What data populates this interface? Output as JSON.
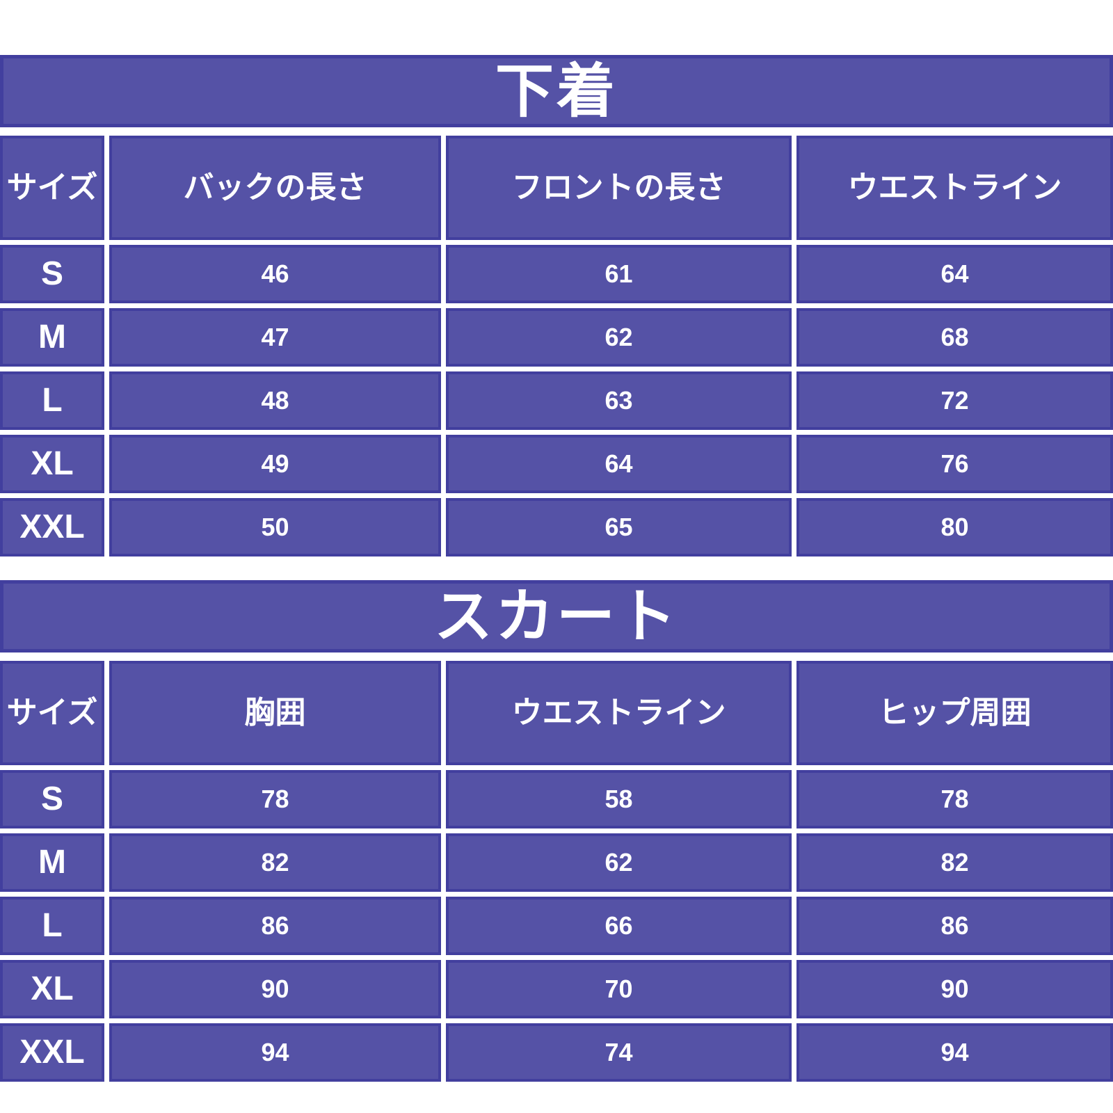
{
  "colors": {
    "cell_fill": "#5552a6",
    "cell_border": "#423f9e",
    "text_color": "#ffffff",
    "page_bg": "#ffffff"
  },
  "tables": [
    {
      "title": "下着",
      "columns": [
        "サイズ",
        "バックの長さ",
        "フロントの長さ",
        "ウエストライン"
      ],
      "rows": [
        {
          "size": "S",
          "cells": [
            "46",
            "61",
            "64"
          ]
        },
        {
          "size": "M",
          "cells": [
            "47",
            "62",
            "68"
          ]
        },
        {
          "size": "L",
          "cells": [
            "48",
            "63",
            "72"
          ]
        },
        {
          "size": "XL",
          "cells": [
            "49",
            "64",
            "76"
          ]
        },
        {
          "size": "XXL",
          "cells": [
            "50",
            "65",
            "80"
          ]
        }
      ]
    },
    {
      "title": "スカート",
      "columns": [
        "サイズ",
        "胸囲",
        "ウエストライン",
        "ヒップ周囲"
      ],
      "rows": [
        {
          "size": "S",
          "cells": [
            "78",
            "58",
            "78"
          ]
        },
        {
          "size": "M",
          "cells": [
            "82",
            "62",
            "82"
          ]
        },
        {
          "size": "L",
          "cells": [
            "86",
            "66",
            "86"
          ]
        },
        {
          "size": "XL",
          "cells": [
            "90",
            "70",
            "90"
          ]
        },
        {
          "size": "XXL",
          "cells": [
            "94",
            "74",
            "94"
          ]
        }
      ]
    }
  ]
}
